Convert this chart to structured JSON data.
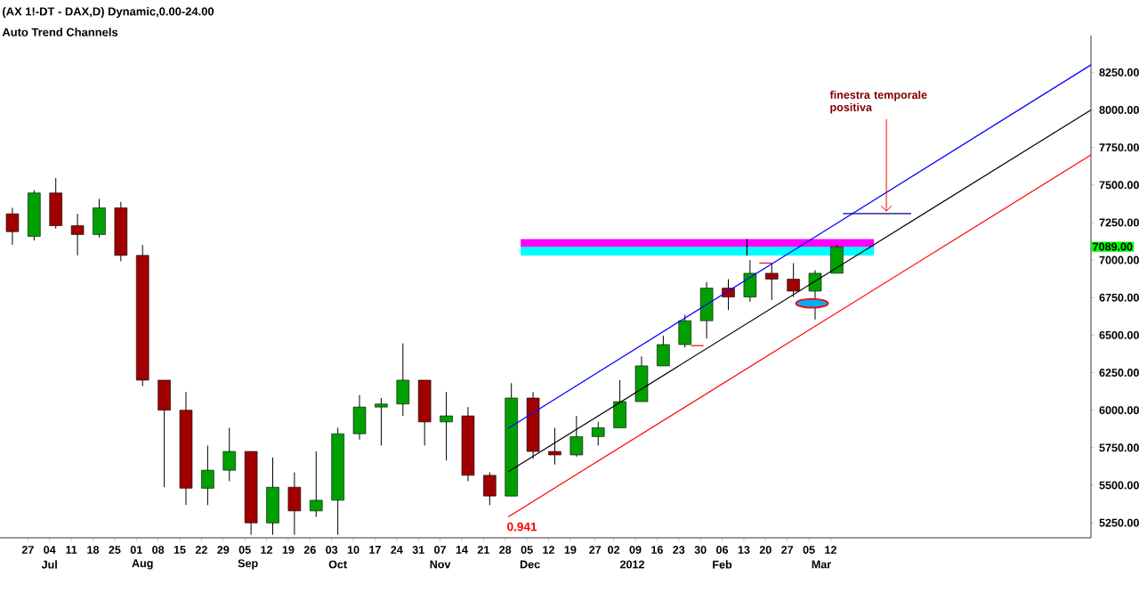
{
  "chart_data": {
    "type": "candlestick",
    "title": "(AX 1!-DT - DAX,D) Dynamic,0.00-24.00",
    "subtitle": "Auto Trend Channels",
    "x": [
      "2011-06-22",
      "2011-06-29",
      "2011-07-06",
      "2011-07-13",
      "2011-07-20",
      "2011-07-27",
      "2011-08-03",
      "2011-08-10",
      "2011-08-17",
      "2011-08-24",
      "2011-08-31",
      "2011-09-07",
      "2011-09-14",
      "2011-09-21",
      "2011-09-28",
      "2011-10-05",
      "2011-10-12",
      "2011-10-19",
      "2011-10-26",
      "2011-11-02",
      "2011-11-09",
      "2011-11-16",
      "2011-11-23",
      "2011-11-30",
      "2011-12-07",
      "2011-12-14",
      "2011-12-21",
      "2011-12-28",
      "2012-01-04",
      "2012-01-11",
      "2012-01-18",
      "2012-01-25",
      "2012-02-01",
      "2012-02-08",
      "2012-02-15",
      "2012-02-22",
      "2012-02-29",
      "2012-03-07",
      "2012-03-14"
    ],
    "ohlc": [
      [
        7308,
        7348,
        7102,
        7189
      ],
      [
        7158,
        7466,
        7130,
        7447
      ],
      [
        7447,
        7546,
        7209,
        7229
      ],
      [
        7229,
        7308,
        7031,
        7170
      ],
      [
        7170,
        7407,
        7150,
        7348
      ],
      [
        7348,
        7387,
        6992,
        7031
      ],
      [
        7031,
        7100,
        6160,
        6200
      ],
      [
        6200,
        6200,
        5487,
        6000
      ],
      [
        6000,
        6121,
        5368,
        5480
      ],
      [
        5480,
        5764,
        5368,
        5600
      ],
      [
        5600,
        5883,
        5527,
        5725
      ],
      [
        5725,
        5725,
        5170,
        5249
      ],
      [
        5249,
        5685,
        5170,
        5487
      ],
      [
        5487,
        5586,
        5170,
        5329
      ],
      [
        5329,
        5725,
        5289,
        5400
      ],
      [
        5400,
        5883,
        5170,
        5843
      ],
      [
        5843,
        6101,
        5804,
        6021
      ],
      [
        6021,
        6081,
        5764,
        6041
      ],
      [
        6041,
        6445,
        5962,
        6200
      ],
      [
        6200,
        6200,
        5764,
        5922
      ],
      [
        5922,
        6121,
        5665,
        5962
      ],
      [
        5962,
        6021,
        5527,
        5566
      ],
      [
        5566,
        5586,
        5368,
        5428
      ],
      [
        5428,
        6180,
        5428,
        6081
      ],
      [
        6081,
        6121,
        5677,
        5725
      ],
      [
        5725,
        5883,
        5638,
        5702
      ],
      [
        5702,
        5962,
        5690,
        5824
      ],
      [
        5824,
        5922,
        5764,
        5883
      ],
      [
        5883,
        6200,
        5883,
        6057
      ],
      [
        6057,
        6358,
        6057,
        6295
      ],
      [
        6295,
        6497,
        6295,
        6437
      ],
      [
        6437,
        6635,
        6417,
        6596
      ],
      [
        6596,
        6853,
        6477,
        6813
      ],
      [
        6813,
        6873,
        6667,
        6754
      ],
      [
        6754,
        6999,
        6722,
        6912
      ],
      [
        6912,
        6980,
        6734,
        6873
      ],
      [
        6873,
        6980,
        6754,
        6793
      ],
      [
        6793,
        6932,
        6604,
        6912
      ],
      [
        6912,
        7102,
        6912,
        7089
      ]
    ],
    "series": [
      {
        "type": "line",
        "color": "#ff00ff",
        "x": [
          "2011-12-03",
          "2012-03-26"
        ],
        "values": [
          null,
          null
        ],
        "lower": [
          7090,
          7090
        ],
        "upper": [
          7140,
          7140
        ]
      },
      {
        "type": "line",
        "color": "#00ffff",
        "x": [
          "2011-12-03",
          "2012-03-26"
        ],
        "values": [
          null,
          null
        ],
        "lower": [
          7030,
          7030
        ],
        "upper": [
          7090,
          7090
        ]
      },
      {
        "type": "line",
        "color": "#0000ff",
        "x": [
          "2011-11-29",
          "2012-06-04"
        ],
        "values": [
          5880,
          8300
        ]
      },
      {
        "type": "line",
        "color": "#000000",
        "x": [
          "2011-11-29",
          "2012-06-04"
        ],
        "values": [
          5590,
          8000
        ]
      },
      {
        "type": "line",
        "color": "#ff0000",
        "x": [
          "2011-11-29",
          "2012-06-04"
        ],
        "values": [
          5290,
          7700
        ]
      },
      {
        "type": "line",
        "color": "#000080",
        "x": [
          "2012-03-16",
          "2012-04-07"
        ],
        "values": [
          7310,
          7310
        ]
      },
      {
        "type": "line",
        "color": "#000000",
        "x": [
          "2012-02-14",
          "2012-02-14"
        ],
        "values": [
          7140,
          7030
        ]
      },
      {
        "type": "line",
        "color": "#ff0000",
        "x": [
          "2012-01-27",
          "2012-01-31"
        ],
        "values": [
          6430,
          6430
        ]
      },
      {
        "type": "line",
        "color": "#ff0000",
        "x": [
          "2012-02-18",
          "2012-02-22"
        ],
        "values": [
          6980,
          6980
        ]
      }
    ],
    "xlim": [
      "2011-06-18",
      "2012-06-04"
    ],
    "xticks": [
      {
        "value": "2011-06-27",
        "label": "27"
      },
      {
        "value": "2011-07-04",
        "label": "04"
      },
      {
        "value": "2011-07-11",
        "label": "11"
      },
      {
        "value": "2011-07-18",
        "label": "18"
      },
      {
        "value": "2011-07-25",
        "label": "25"
      },
      {
        "value": "2011-08-01",
        "label": "01"
      },
      {
        "value": "2011-08-08",
        "label": "08"
      },
      {
        "value": "2011-08-15",
        "label": "15"
      },
      {
        "value": "2011-08-22",
        "label": "22"
      },
      {
        "value": "2011-08-29",
        "label": "29"
      },
      {
        "value": "2011-09-05",
        "label": "05"
      },
      {
        "value": "2011-09-12",
        "label": "12"
      },
      {
        "value": "2011-09-19",
        "label": "19"
      },
      {
        "value": "2011-09-26",
        "label": "26"
      },
      {
        "value": "2011-10-03",
        "label": "03"
      },
      {
        "value": "2011-10-10",
        "label": "10"
      },
      {
        "value": "2011-10-17",
        "label": "17"
      },
      {
        "value": "2011-10-24",
        "label": "24"
      },
      {
        "value": "2011-10-31",
        "label": "31"
      },
      {
        "value": "2011-11-07",
        "label": "07"
      },
      {
        "value": "2011-11-14",
        "label": "14"
      },
      {
        "value": "2011-11-21",
        "label": "21"
      },
      {
        "value": "2011-11-28",
        "label": "28"
      },
      {
        "value": "2011-12-05",
        "label": "05"
      },
      {
        "value": "2011-12-12",
        "label": "12"
      },
      {
        "value": "2011-12-19",
        "label": "19"
      },
      {
        "value": "2011-12-27",
        "label": "27"
      },
      {
        "value": "2012-01-02",
        "label": "02"
      },
      {
        "value": "2012-01-09",
        "label": "09"
      },
      {
        "value": "2012-01-16",
        "label": "16"
      },
      {
        "value": "2012-01-23",
        "label": "23"
      },
      {
        "value": "2012-01-30",
        "label": "30"
      },
      {
        "value": "2012-02-06",
        "label": "06"
      },
      {
        "value": "2012-02-13",
        "label": "13"
      },
      {
        "value": "2012-02-20",
        "label": "20"
      },
      {
        "value": "2012-02-27",
        "label": "27"
      },
      {
        "value": "2012-03-05",
        "label": "05"
      },
      {
        "value": "2012-03-12",
        "label": "12"
      }
    ],
    "x2lim": [
      "2011-06-18",
      "2012-06-04"
    ],
    "x2ticks": [
      {
        "value": "2011-07-04",
        "label": "Jul"
      },
      {
        "value": "2011-08-03",
        "label": "Aug"
      },
      {
        "value": "2011-09-06",
        "label": "Sep"
      },
      {
        "value": "2011-10-05",
        "label": "Oct"
      },
      {
        "value": "2011-11-07",
        "label": "Nov"
      },
      {
        "value": "2011-12-06",
        "label": "Dec"
      },
      {
        "value": "2012-01-08",
        "label": "2012"
      },
      {
        "value": "2012-02-06",
        "label": "Feb"
      },
      {
        "value": "2012-03-09",
        "label": "Mar"
      }
    ],
    "ylim": [
      5150,
      8495
    ],
    "yticks": [
      {
        "value": 5250,
        "label": "5250.00"
      },
      {
        "value": 5500,
        "label": "5500.00"
      },
      {
        "value": 5750,
        "label": "5750.00"
      },
      {
        "value": 6000,
        "label": "6000.00"
      },
      {
        "value": 6250,
        "label": "6250.00"
      },
      {
        "value": 6500,
        "label": "6500.00"
      },
      {
        "value": 6750,
        "label": "6750.00"
      },
      {
        "value": 7000,
        "label": "7000.00"
      },
      {
        "value": 7250,
        "label": "7250.00"
      },
      {
        "value": 7500,
        "label": "7500.00"
      },
      {
        "value": 7750,
        "label": "7750.00"
      },
      {
        "value": 8000,
        "label": "8000.00"
      },
      {
        "value": 8250,
        "label": "8250.00"
      }
    ],
    "annotations": [
      {
        "text": "finestra temporale positiva",
        "x": "2012-03-30",
        "y": 7310
      },
      {
        "text": "0.941",
        "x": "2011-11-29",
        "y": 5290
      },
      "7089.00"
    ]
  }
}
